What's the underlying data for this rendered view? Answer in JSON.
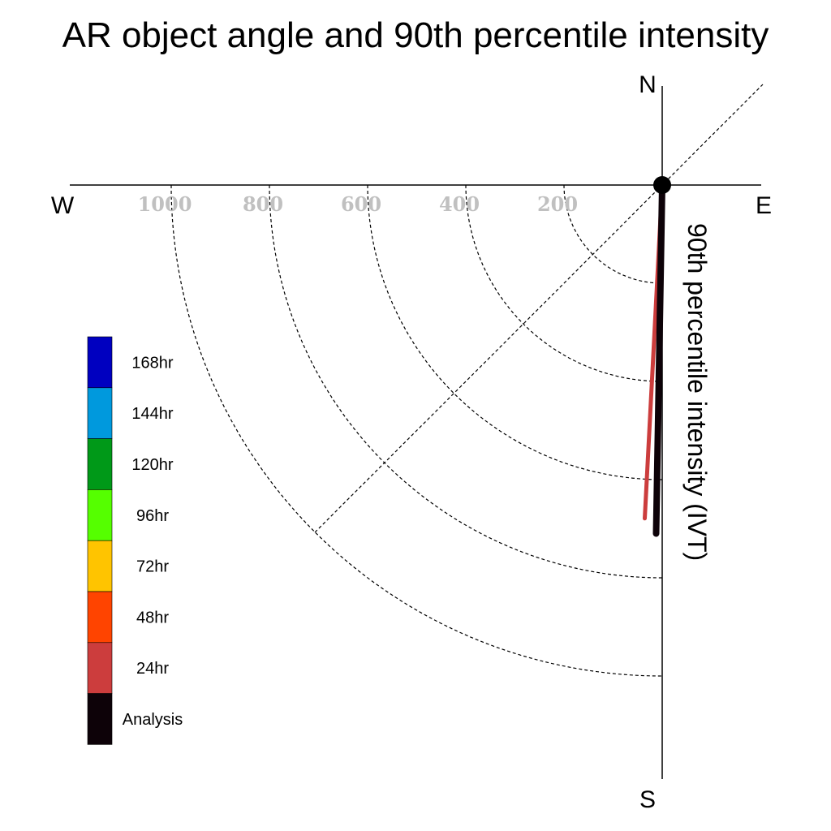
{
  "chart_data": {
    "type": "polar-line",
    "title": "AR object angle and 90th percentile intensity",
    "ylabel": "90th percentile intensity (IVT)",
    "directions": {
      "north": "N",
      "south": "S",
      "west": "W",
      "east": "E"
    },
    "radial_ticks": [
      200,
      400,
      600,
      800,
      1000
    ],
    "radial_tick_labels": [
      "200",
      "400",
      "600",
      "800",
      "1000"
    ],
    "rlim": [
      0,
      1000
    ],
    "grid": true,
    "legend_position": "left",
    "legend": [
      {
        "label": "168hr",
        "color": "#0000c0"
      },
      {
        "label": "144hr",
        "color": "#0099dd"
      },
      {
        "label": "120hr",
        "color": "#009918"
      },
      {
        "label": "96hr",
        "color": "#55ff00"
      },
      {
        "label": "72hr",
        "color": "#ffc400"
      },
      {
        "label": "48hr",
        "color": "#ff4400"
      },
      {
        "label": "24hr",
        "color": "#cc3d3d"
      },
      {
        "label": "Analysis",
        "color": "#0d0208"
      }
    ],
    "series": [
      {
        "name": "24hr",
        "color": "#cc3d3d",
        "angle_deg_from_south": 3.0,
        "intensity": 680
      },
      {
        "name": "Analysis",
        "color": "#0d0208",
        "angle_deg_from_south": 1.0,
        "intensity": 710
      }
    ]
  }
}
